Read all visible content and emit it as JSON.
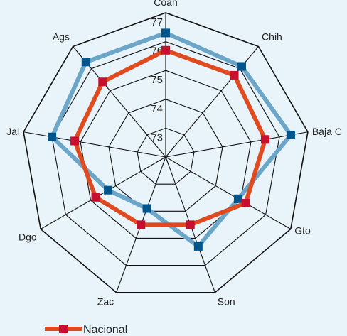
{
  "chart_data": {
    "type": "radar",
    "categories": [
      "Coah",
      "Chih",
      "Baja C",
      "Gto",
      "Son",
      "Zac",
      "Dgo",
      "Jal",
      "Ags"
    ],
    "rlim": [
      72,
      77
    ],
    "ticks": [
      "73",
      "74",
      "75",
      "76",
      "77"
    ],
    "grid": true,
    "legend_position": "bottom-left",
    "series": [
      {
        "name": "Nacional",
        "color": "#e04a1f",
        "marker_color": "#c8102e",
        "values": [
          75.7,
          75.7,
          75.5,
          75.2,
          74.5,
          74.5,
          74.8,
          75.2,
          75.4
        ]
      },
      {
        "name": "",
        "color": "#6ba6c8",
        "marker_color": "#00558c",
        "values": [
          76.3,
          76.1,
          76.4,
          74.9,
          75.3,
          73.9,
          74.3,
          76.0,
          76.3
        ]
      }
    ]
  }
}
